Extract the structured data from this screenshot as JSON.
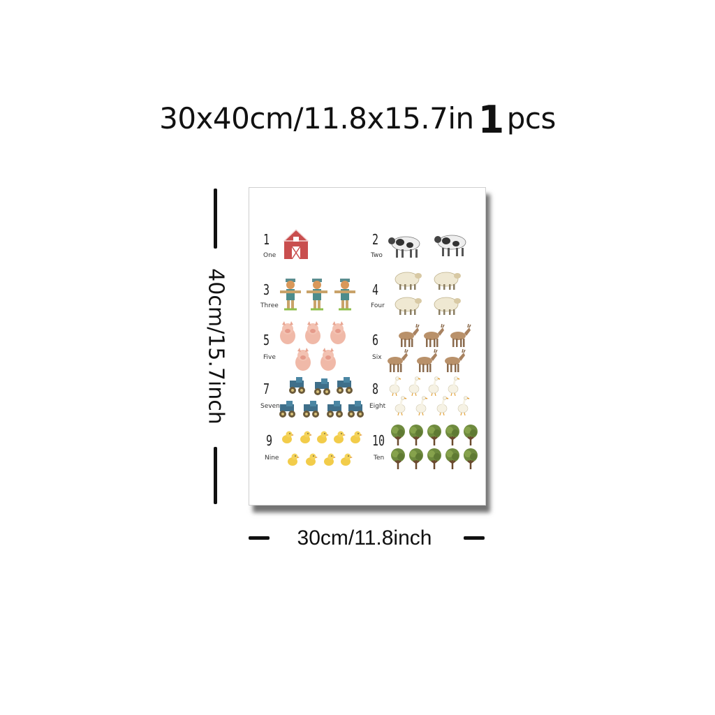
{
  "headline": {
    "size": "30x40cm/11.8x15.7in",
    "qty": "1",
    "unit": "pcs"
  },
  "dims": {
    "height": "40cm/15.7inch",
    "width": "30cm/11.8inch"
  },
  "chart": {
    "rows": [
      {
        "left": {
          "n": "1",
          "word": "One",
          "icon": "barn-icon"
        },
        "right": {
          "n": "2",
          "word": "Two",
          "icon": "cow-icon"
        }
      },
      {
        "left": {
          "n": "3",
          "word": "Three",
          "icon": "scarecrow-icon"
        },
        "right": {
          "n": "4",
          "word": "Four",
          "icon": "sheep-icon"
        }
      },
      {
        "left": {
          "n": "5",
          "word": "Five",
          "icon": "pig-icon"
        },
        "right": {
          "n": "6",
          "word": "Six",
          "icon": "donkey-icon"
        }
      },
      {
        "left": {
          "n": "7",
          "word": "Seven",
          "icon": "tractor-icon"
        },
        "right": {
          "n": "8",
          "word": "Eight",
          "icon": "goose-icon"
        }
      },
      {
        "left": {
          "n": "9",
          "word": "Nine",
          "icon": "chick-icon"
        },
        "right": {
          "n": "10",
          "word": "Ten",
          "icon": "tree-icon"
        }
      }
    ]
  }
}
